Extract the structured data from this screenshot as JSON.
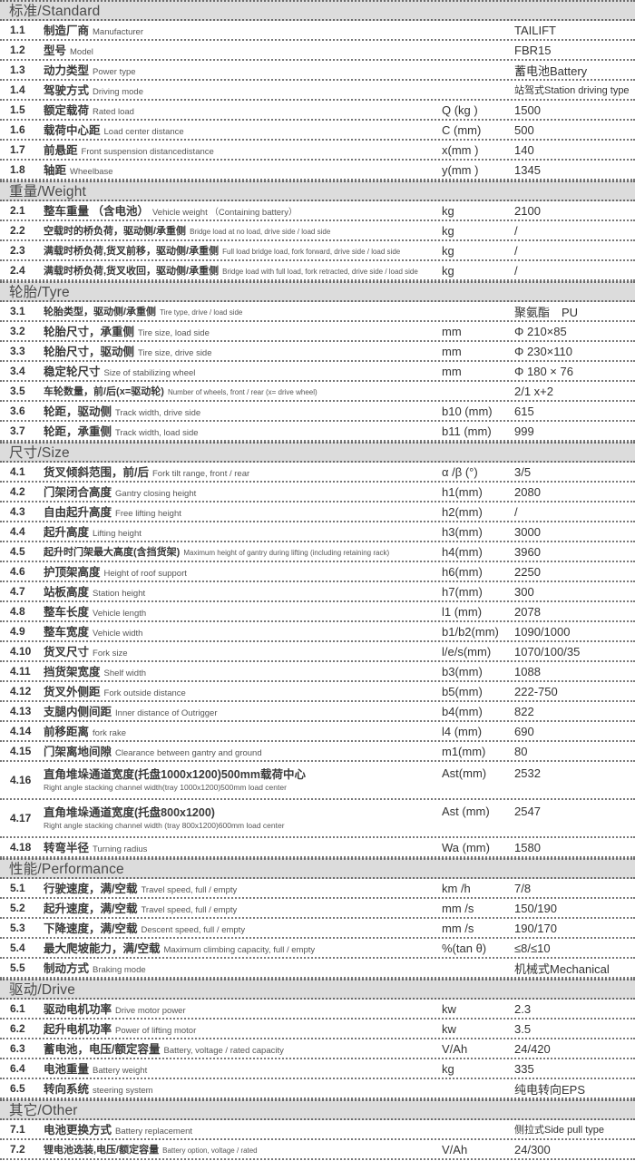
{
  "colors": {
    "header_bg": "#dcdcdc",
    "header_text": "#4a4a4a",
    "row_text": "#3a3a3a",
    "sub_text": "#555555",
    "divider": "#777777"
  },
  "product": {
    "manufacturer": "TAILIFT",
    "model": "FBR15"
  },
  "table": {
    "sections": [
      {
        "title": "标准/Standard",
        "rows": [
          {
            "no": "1.1",
            "zh": "制造厂商",
            "en": "Manufacturer",
            "sym": "",
            "val": "TAILIFT"
          },
          {
            "no": "1.2",
            "zh": "型号",
            "en": "Model",
            "sym": "",
            "val": "FBR15"
          },
          {
            "no": "1.3",
            "zh": "动力类型",
            "en": "Power type",
            "sym": "",
            "val": "蓄电池Battery"
          },
          {
            "no": "1.4",
            "zh": "驾驶方式",
            "en": "Driving mode",
            "sym": "",
            "val": "站驾式Station driving type"
          },
          {
            "no": "1.5",
            "zh": "额定载荷",
            "en": "Rated load",
            "sym": "Q (kg )",
            "val": "1500"
          },
          {
            "no": "1.6",
            "zh": "载荷中心距",
            "en": "Load center distance",
            "sym": "C (mm)",
            "val": "500"
          },
          {
            "no": "1.7",
            "zh": "前悬距",
            "en": "Front suspension distancedistance",
            "sym": "x(mm )",
            "val": "140"
          },
          {
            "no": "1.8",
            "zh": "轴距",
            "en": "Wheelbase",
            "sym": "y(mm )",
            "val": "1345"
          }
        ]
      },
      {
        "title": "重量/Weight",
        "rows": [
          {
            "no": "2.1",
            "zh": "整车重量 （含电池）",
            "en": "Vehicle weight （Containing battery）",
            "sym": "kg",
            "val": "2100"
          },
          {
            "no": "2.2",
            "zh": "空载时的桥负荷，驱动侧/承重侧",
            "en": "Bridge load at no load, drive side / load side",
            "sym": "kg",
            "val": "/"
          },
          {
            "no": "2.3",
            "zh": "满载时桥负荷,货叉前移，驱动侧/承重侧",
            "en": "Full load bridge load, fork forward, drive side / load side",
            "sym": "kg",
            "val": "/"
          },
          {
            "no": "2.4",
            "zh": "满载时桥负荷,货叉收回，驱动侧/承重侧",
            "en": "Bridge load with full load, fork retracted, drive side / load side",
            "sym": "kg",
            "val": "/"
          }
        ]
      },
      {
        "title": "轮胎/Tyre",
        "rows": [
          {
            "no": "3.1",
            "zh": "轮胎类型，驱动侧/承重侧",
            "en": "Tire type, drive / load side",
            "sym": "",
            "val": "聚氨酯　PU"
          },
          {
            "no": "3.2",
            "zh": "轮胎尺寸，承重侧",
            "en": "Tire size, load side",
            "sym": "mm",
            "val": "Φ 210×85"
          },
          {
            "no": "3.3",
            "zh": "轮胎尺寸，驱动侧",
            "en": "Tire size, drive side",
            "sym": "mm",
            "val": "Φ 230×110"
          },
          {
            "no": "3.4",
            "zh": "稳定轮尺寸",
            "en": "Size of stabilizing wheel",
            "sym": "mm",
            "val": "Φ 180 × 76"
          },
          {
            "no": "3.5",
            "zh": "车轮数量，前/后(x=驱动轮)",
            "en": "Number of wheels, front / rear (x= drive wheel)",
            "sym": "",
            "val": "2/1 x+2"
          },
          {
            "no": "3.6",
            "zh": "轮距，驱动侧",
            "en": "Track width, drive side",
            "sym": "b10 (mm)",
            "val": "615"
          },
          {
            "no": "3.7",
            "zh": "轮距，承重侧",
            "en": "Track width, load side",
            "sym": "b11 (mm)",
            "val": "999"
          }
        ]
      },
      {
        "title": "尺寸/Size",
        "rows": [
          {
            "no": "4.1",
            "zh": "货叉倾斜范围，前/后",
            "en": "Fork tilt range, front / rear",
            "sym": "α /β (°)",
            "val": "3/5"
          },
          {
            "no": "4.2",
            "zh": "门架闭合高度",
            "en": "Gantry closing height",
            "sym": "h1(mm)",
            "val": "2080"
          },
          {
            "no": "4.3",
            "zh": "自由起升高度",
            "en": "Free lifting height",
            "sym": "h2(mm)",
            "val": "/"
          },
          {
            "no": "4.4",
            "zh": "起升高度",
            "en": "Lifting height",
            "sym": "h3(mm)",
            "val": "3000"
          },
          {
            "no": "4.5",
            "zh": "起升时门架最大高度(含挡货架)",
            "en": "Maximum height of gantry during lifting (including retaining rack)",
            "sym": "h4(mm)",
            "val": "3960"
          },
          {
            "no": "4.6",
            "zh": "护顶架高度",
            "en": "Height of roof support",
            "sym": "h6(mm)",
            "val": "2250"
          },
          {
            "no": "4.7",
            "zh": "站板高度",
            "en": "Station height",
            "sym": "h7(mm)",
            "val": "300"
          },
          {
            "no": "4.8",
            "zh": "整车长度",
            "en": "Vehicle length",
            "sym": "l1  (mm)",
            "val": "2078"
          },
          {
            "no": "4.9",
            "zh": "整车宽度",
            "en": "Vehicle width",
            "sym": "b1/b2(mm)",
            "val": "1090/1000"
          },
          {
            "no": "4.10",
            "zh": "货叉尺寸",
            "en": "Fork size",
            "sym": "l/e/s(mm)",
            "val": "1070/100/35"
          },
          {
            "no": "4.11",
            "zh": "挡货架宽度",
            "en": "Shelf width",
            "sym": "b3(mm)",
            "val": "1088"
          },
          {
            "no": "4.12",
            "zh": "货叉外侧距",
            "en": "Fork outside distance",
            "sym": "b5(mm)",
            "val": "222-750"
          },
          {
            "no": "4.13",
            "zh": "支腿内侧间距",
            "en": "Inner distance of Outrigger",
            "sym": "b4(mm)",
            "val": "822"
          },
          {
            "no": "4.14",
            "zh": "前移距离",
            "en": "fork rake",
            "sym": "l4  (mm)",
            "val": "690"
          },
          {
            "no": "4.15",
            "zh": "门架离地间隙",
            "en": "Clearance between gantry and ground",
            "sym": "m1(mm)",
            "val": "80"
          },
          {
            "no": "4.16",
            "zh": "直角堆垛通道宽度(托盘1000x1200)500mm载荷中心",
            "en": "Right angle stacking channel width(tray 1000x1200)500mm load center",
            "sym": "Ast(mm)",
            "val": "2532",
            "two_line": true
          },
          {
            "no": "4.17",
            "zh": "直角堆垛通道宽度(托盘800x1200)",
            "en": "Right angle stacking channel width (tray 800x1200)600mm load center",
            "sym": "Ast (mm)",
            "val": "2547",
            "two_line": true
          },
          {
            "no": "4.18",
            "zh": "转弯半径",
            "en": "Turning radius",
            "sym": "Wa (mm)",
            "val": "1580"
          }
        ]
      },
      {
        "title": "性能/Performance",
        "rows": [
          {
            "no": "5.1",
            "zh": "行驶速度，满/空载",
            "en": "Travel speed, full / empty",
            "sym": "km /h",
            "val": "7/8"
          },
          {
            "no": "5.2",
            "zh": "起升速度，满/空载",
            "en": "Travel speed, full / empty",
            "sym": "mm /s",
            "val": "150/190"
          },
          {
            "no": "5.3",
            "zh": "下降速度，满/空载",
            "en": "Descent speed, full / empty",
            "sym": "mm /s",
            "val": "190/170"
          },
          {
            "no": "5.4",
            "zh": "最大爬坡能力，满/空载",
            "en": "Maximum climbing capacity, full / empty",
            "sym": "%(tan θ)",
            "val": "≤8/≤10"
          },
          {
            "no": "5.5",
            "zh": "制动方式",
            "en": "Braking mode",
            "sym": "",
            "val": "机械式Mechanical"
          }
        ]
      },
      {
        "title": "驱动/Drive",
        "rows": [
          {
            "no": "6.1",
            "zh": "驱动电机功率",
            "en": "Drive motor power",
            "sym": "kw",
            "val": "2.3"
          },
          {
            "no": "6.2",
            "zh": "起升电机功率",
            "en": "Power of lifting motor",
            "sym": "kw",
            "val": "3.5"
          },
          {
            "no": "6.3",
            "zh": "蓄电池，电压/额定容量",
            "en": "Battery, voltage / rated capacity",
            "sym": "V/Ah",
            "val": "24/420"
          },
          {
            "no": "6.4",
            "zh": "电池重量",
            "en": "Battery weight",
            "sym": "kg",
            "val": "335"
          },
          {
            "no": "6.5",
            "zh": "转向系统",
            "en": "steering system",
            "sym": "",
            "val": "纯电转向EPS"
          }
        ]
      },
      {
        "title": "其它/Other",
        "rows": [
          {
            "no": "7.1",
            "zh": "电池更换方式",
            "en": "Battery replacement",
            "sym": "",
            "val": "侧拉式Side pull type"
          },
          {
            "no": "7.2",
            "zh": "锂电池选装,电压/额定容量",
            "en": "Battery option, voltage / rated",
            "sym": "V/Ah",
            "val": "24/300"
          }
        ]
      }
    ]
  }
}
